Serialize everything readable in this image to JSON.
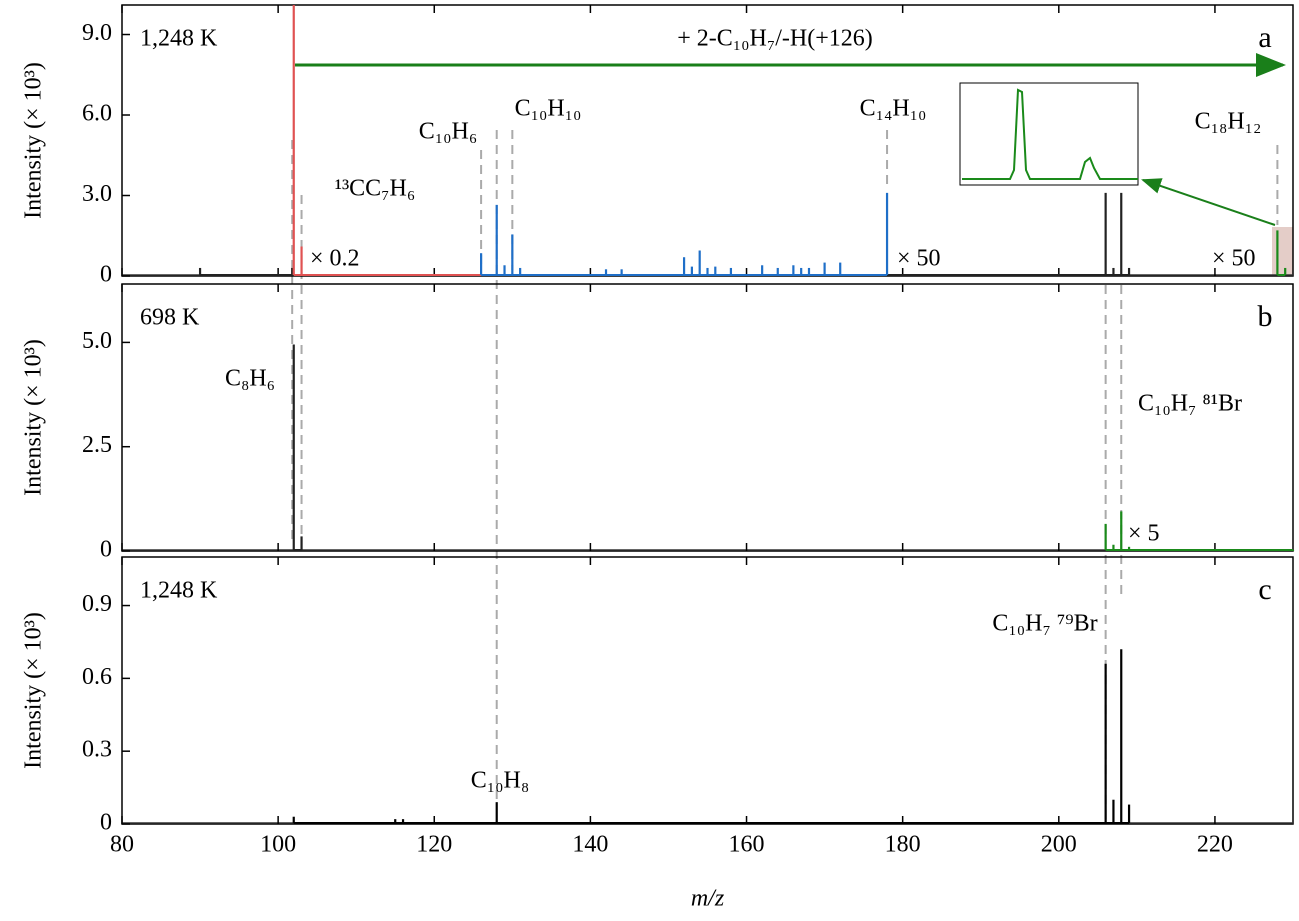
{
  "chart_data": [
    {
      "type": "stem",
      "panel": "a",
      "subtitle": "1,248 K",
      "ylabel": "Intensity (× 10³)",
      "ylim": [
        0,
        10.1
      ],
      "yticks": [
        0,
        {
          "value": 3,
          "label": "3.0"
        },
        {
          "value": 6,
          "label": "6.0"
        },
        {
          "value": 9,
          "label": "9.0"
        }
      ],
      "series": [
        {
          "color": "#222222",
          "x": [
            90,
            101.8,
            206,
            207,
            208,
            209
          ],
          "values": [
            0.3,
            0.3,
            3.1,
            0.3,
            3.1,
            0.3
          ]
        },
        {
          "name": "× 0.2",
          "color": "#e05252",
          "x": [
            102,
            103,
            126
          ],
          "values": [
            10.1,
            1.1,
            0
          ]
        },
        {
          "name": "× 50",
          "color": "#1f6fc8",
          "x": [
            126,
            128,
            129,
            130,
            131,
            142,
            144,
            152,
            153,
            154,
            155,
            156,
            158,
            162,
            164,
            166,
            167,
            168,
            170,
            172,
            178
          ],
          "values": [
            0.85,
            2.65,
            0.4,
            1.55,
            0.3,
            0.25,
            0.25,
            0.7,
            0.35,
            0.95,
            0.3,
            0.35,
            0.3,
            0.4,
            0.3,
            0.4,
            0.3,
            0.3,
            0.5,
            0.5,
            3.1
          ]
        },
        {
          "name": "× 50",
          "color": "#1a8a1a",
          "x": [
            228,
            229
          ],
          "values": [
            1.7,
            0.3
          ]
        }
      ],
      "annotations": [
        {
          "text": "¹³CC₇H₆"
        },
        {
          "text": "C₁₀H₆"
        },
        {
          "text": "C₁₀H₁₀"
        },
        {
          "text": "C₁₄H₁₀"
        },
        {
          "text": "C₁₈H₁₂",
          "color": "#1a8a1a"
        },
        {
          "text": "+ 2-C₁₀H₇/-H(+126)",
          "color": "#1a8a1a"
        }
      ]
    },
    {
      "type": "stem",
      "panel": "b",
      "subtitle": "698 K",
      "ylabel": "Intensity (× 10³)",
      "ylim": [
        0,
        6.4
      ],
      "yticks": [
        0,
        2.5,
        {
          "value": 5,
          "label": "5.0"
        }
      ],
      "series": [
        {
          "color": "#222222",
          "x": [
            102,
            103
          ],
          "values": [
            4.95,
            0.35
          ]
        },
        {
          "name": "× 5",
          "color": "#1a8a1a",
          "x": [
            206,
            207,
            208,
            209,
            230
          ],
          "values": [
            0.65,
            0.15,
            0.95,
            0.1,
            0
          ]
        }
      ],
      "annotations": [
        {
          "text": "C₈H₆"
        },
        {
          "text": "C₁₀H₇ ⁸¹Br"
        }
      ]
    },
    {
      "type": "stem",
      "panel": "c",
      "subtitle": "1,248 K",
      "ylabel": "Intensity (× 10³)",
      "ylim": [
        0,
        1.1
      ],
      "yticks": [
        0,
        0.3,
        0.6,
        0.9
      ],
      "xlim": [
        80,
        230
      ],
      "xticks": [
        80,
        100,
        120,
        140,
        160,
        180,
        200,
        220
      ],
      "xlabel": "m/z",
      "series": [
        {
          "color": "#000000",
          "x": [
            102,
            115,
            116,
            128,
            206,
            207,
            208,
            209
          ],
          "values": [
            0.03,
            0.02,
            0.02,
            0.09,
            0.66,
            0.1,
            0.72,
            0.08
          ]
        }
      ],
      "annotations": [
        {
          "text": "C₁₀H₇ ⁷⁹Br"
        },
        {
          "text": "C₁₀H₈"
        }
      ]
    }
  ]
}
